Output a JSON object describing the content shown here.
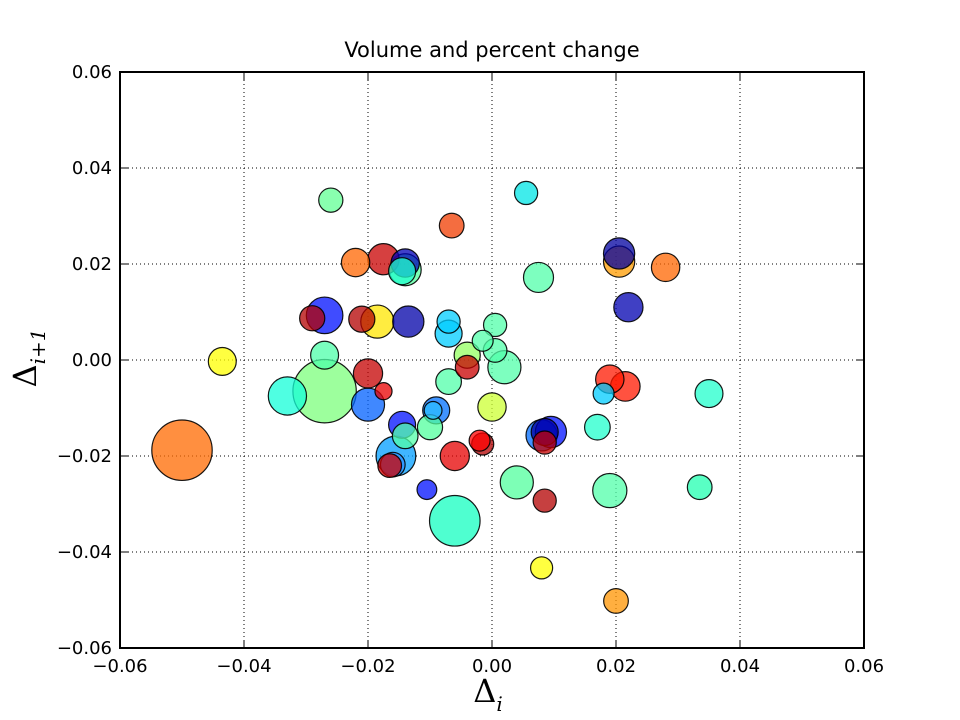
{
  "chart_data": {
    "type": "scatter",
    "title": "Volume and percent change",
    "xlabel": "Δ",
    "xlabel_sub": "i",
    "ylabel": "Δ",
    "ylabel_sub": "i+1",
    "xlim": [
      -0.06,
      0.06
    ],
    "ylim": [
      -0.06,
      0.06
    ],
    "x_ticks": [
      -0.06,
      -0.04,
      -0.02,
      0.0,
      0.02,
      0.04,
      0.06
    ],
    "y_ticks": [
      -0.06,
      -0.04,
      -0.02,
      0.0,
      0.02,
      0.04,
      0.06
    ],
    "x_tick_labels": [
      "−0.06",
      "−0.04",
      "−0.02",
      "0.00",
      "0.02",
      "0.04",
      "0.06"
    ],
    "y_tick_labels": [
      "−0.06",
      "−0.04",
      "−0.02",
      "0.00",
      "0.02",
      "0.04",
      "0.06"
    ],
    "grid": true,
    "grid_style": "dotted",
    "points": [
      {
        "x": -0.05,
        "y": -0.0188,
        "size": 1500,
        "color": "#ff6a00"
      },
      {
        "x": -0.027,
        "y": -0.0065,
        "size": 1650,
        "color": "#7cff7c"
      },
      {
        "x": -0.033,
        "y": -0.0075,
        "size": 600,
        "color": "#14ffd8"
      },
      {
        "x": -0.006,
        "y": -0.0335,
        "size": 1050,
        "color": "#14ffc0"
      },
      {
        "x": -0.0155,
        "y": -0.02,
        "size": 650,
        "color": "#009dff"
      },
      {
        "x": -0.0435,
        "y": -0.0003,
        "size": 320,
        "color": "#ffff00"
      },
      {
        "x": -0.026,
        "y": 0.0333,
        "size": 240,
        "color": "#62ff94"
      },
      {
        "x": -0.022,
        "y": 0.0203,
        "size": 330,
        "color": "#ff6600"
      },
      {
        "x": -0.0175,
        "y": 0.021,
        "size": 400,
        "color": "#c80000"
      },
      {
        "x": -0.0145,
        "y": 0.0185,
        "size": 300,
        "color": "#22ffcc"
      },
      {
        "x": -0.014,
        "y": 0.0188,
        "size": 420,
        "color": "#52ff9e"
      },
      {
        "x": -0.014,
        "y": 0.0202,
        "size": 330,
        "color": "#0000b8"
      },
      {
        "x": -0.029,
        "y": 0.0087,
        "size": 260,
        "color": "#b30000"
      },
      {
        "x": -0.027,
        "y": 0.0093,
        "size": 550,
        "color": "#0010ff"
      },
      {
        "x": -0.027,
        "y": 0.001,
        "size": 320,
        "color": "#4dffaa"
      },
      {
        "x": -0.021,
        "y": 0.0085,
        "size": 280,
        "color": "#b30000"
      },
      {
        "x": -0.0185,
        "y": 0.008,
        "size": 450,
        "color": "#ffe600"
      },
      {
        "x": -0.0135,
        "y": 0.008,
        "size": 400,
        "color": "#0000a8"
      },
      {
        "x": -0.02,
        "y": -0.0028,
        "size": 350,
        "color": "#c40000"
      },
      {
        "x": -0.0175,
        "y": -0.0065,
        "size": 120,
        "color": "#e80000"
      },
      {
        "x": -0.02,
        "y": -0.0093,
        "size": 450,
        "color": "#0060ff"
      },
      {
        "x": -0.0145,
        "y": -0.0135,
        "size": 300,
        "color": "#0010ff"
      },
      {
        "x": -0.014,
        "y": -0.0158,
        "size": 270,
        "color": "#52ffaa"
      },
      {
        "x": -0.0165,
        "y": -0.022,
        "size": 230,
        "color": "#d20000"
      },
      {
        "x": -0.016,
        "y": -0.0218,
        "size": 250,
        "color": "#2b8fff"
      },
      {
        "x": -0.01,
        "y": -0.014,
        "size": 260,
        "color": "#52ff9e"
      },
      {
        "x": -0.009,
        "y": -0.0105,
        "size": 300,
        "color": "#0070ff"
      },
      {
        "x": -0.0095,
        "y": -0.0105,
        "size": 130,
        "color": "#2bbcff"
      },
      {
        "x": -0.0105,
        "y": -0.027,
        "size": 160,
        "color": "#0010ff"
      },
      {
        "x": -0.007,
        "y": 0.008,
        "size": 220,
        "color": "#00ccff"
      },
      {
        "x": -0.007,
        "y": 0.0055,
        "size": 300,
        "color": "#00ccff"
      },
      {
        "x": -0.0065,
        "y": 0.028,
        "size": 250,
        "color": "#f03c00"
      },
      {
        "x": -0.007,
        "y": -0.0045,
        "size": 270,
        "color": "#52ffaa"
      },
      {
        "x": -0.006,
        "y": -0.02,
        "size": 350,
        "color": "#e60000"
      },
      {
        "x": -0.004,
        "y": 0.001,
        "size": 280,
        "color": "#94ff62"
      },
      {
        "x": -0.004,
        "y": -0.0015,
        "size": 230,
        "color": "#c80000"
      },
      {
        "x": -0.002,
        "y": -0.0168,
        "size": 180,
        "color": "#ff0000"
      },
      {
        "x": -0.0015,
        "y": -0.0175,
        "size": 200,
        "color": "#b30000"
      },
      {
        "x": -0.0015,
        "y": 0.004,
        "size": 180,
        "color": "#52ffaa"
      },
      {
        "x": 0.0005,
        "y": 0.0073,
        "size": 220,
        "color": "#52ffaa"
      },
      {
        "x": 0.0005,
        "y": 0.002,
        "size": 230,
        "color": "#52ffaa"
      },
      {
        "x": 0.002,
        "y": -0.0015,
        "size": 450,
        "color": "#52ffaa"
      },
      {
        "x": 0.0,
        "y": -0.0098,
        "size": 330,
        "color": "#ccff33"
      },
      {
        "x": 0.004,
        "y": -0.0255,
        "size": 450,
        "color": "#52ff9e"
      },
      {
        "x": 0.0055,
        "y": 0.0348,
        "size": 220,
        "color": "#00e6e6"
      },
      {
        "x": 0.0075,
        "y": 0.0172,
        "size": 370,
        "color": "#52ffaa"
      },
      {
        "x": 0.008,
        "y": -0.0157,
        "size": 400,
        "color": "#006cff"
      },
      {
        "x": 0.0085,
        "y": -0.0172,
        "size": 220,
        "color": "#c40000"
      },
      {
        "x": 0.0085,
        "y": -0.015,
        "size": 300,
        "color": "#0000a0"
      },
      {
        "x": 0.0095,
        "y": -0.015,
        "size": 400,
        "color": "#0010ff"
      },
      {
        "x": 0.0085,
        "y": -0.0293,
        "size": 220,
        "color": "#b30000"
      },
      {
        "x": 0.008,
        "y": -0.0433,
        "size": 200,
        "color": "#ffff00"
      },
      {
        "x": 0.017,
        "y": -0.014,
        "size": 270,
        "color": "#22ffcc"
      },
      {
        "x": 0.018,
        "y": -0.007,
        "size": 180,
        "color": "#00ccff"
      },
      {
        "x": 0.019,
        "y": -0.004,
        "size": 330,
        "color": "#ff1800"
      },
      {
        "x": 0.0215,
        "y": -0.0055,
        "size": 360,
        "color": "#ff1800"
      },
      {
        "x": 0.019,
        "y": -0.0272,
        "size": 480,
        "color": "#52ffaa"
      },
      {
        "x": 0.0205,
        "y": 0.0205,
        "size": 400,
        "color": "#ff9c00"
      },
      {
        "x": 0.0205,
        "y": 0.0222,
        "size": 400,
        "color": "#0000a0"
      },
      {
        "x": 0.022,
        "y": 0.011,
        "size": 350,
        "color": "#0000b0"
      },
      {
        "x": 0.028,
        "y": 0.0193,
        "size": 330,
        "color": "#ff6600"
      },
      {
        "x": 0.02,
        "y": -0.0502,
        "size": 250,
        "color": "#ff9400"
      },
      {
        "x": 0.0335,
        "y": -0.0265,
        "size": 250,
        "color": "#22ffb0"
      },
      {
        "x": 0.035,
        "y": -0.007,
        "size": 320,
        "color": "#22ffcc"
      }
    ]
  }
}
